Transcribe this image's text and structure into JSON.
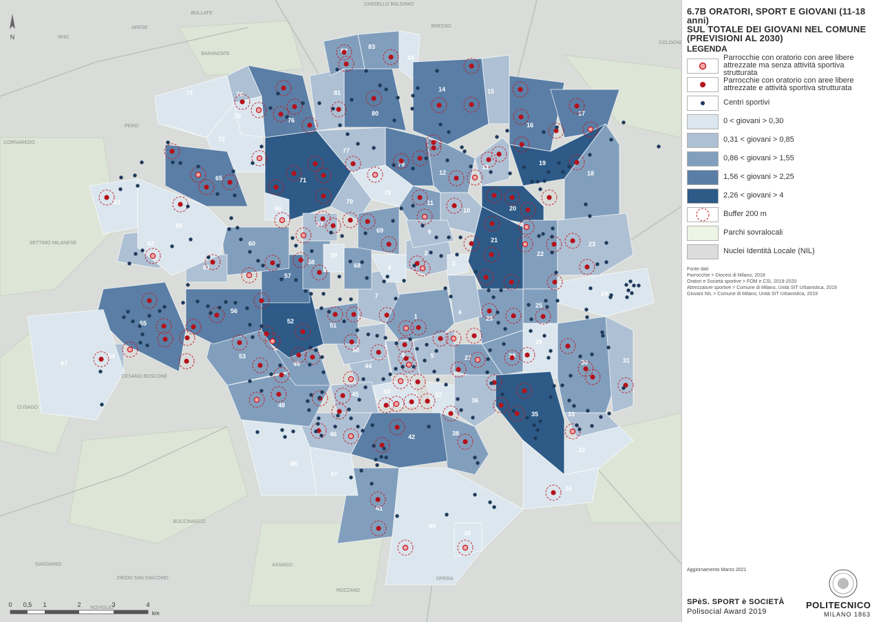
{
  "title": {
    "line1": "6.7B ORATORI, SPORT E GIOVANI (11-18 anni)",
    "line2": "SUL TOTALE DEI GIOVANI NEL COMUNE",
    "line3": "(PREVISIONI AL 2030)",
    "legend_heading": "LEGENDA"
  },
  "legend": [
    {
      "key": "parish-no-sport",
      "label": "Parrocchie con oratorio con aree libere attrezzate ma senza attività sportiva strutturata"
    },
    {
      "key": "parish-sport",
      "label": "Parrocchie con oratorio con aree libere attrezzate e attività sportiva strutturata"
    },
    {
      "key": "sport-center",
      "label": "Centri sportivi"
    },
    {
      "key": "class1",
      "label": "0 < giovani > 0,30",
      "color": "#dbe6ee"
    },
    {
      "key": "class2",
      "label": "0,31 < giovani > 0,85",
      "color": "#adc0d4"
    },
    {
      "key": "class3",
      "label": "0,86 < giovani > 1,55",
      "color": "#819fbd"
    },
    {
      "key": "class4",
      "label": "1,56 < giovani > 2,25",
      "color": "#5a7ea5"
    },
    {
      "key": "class5",
      "label": "2,26 < giovani > 4",
      "color": "#2d5a87"
    },
    {
      "key": "buffer",
      "label": "Buffer 200 m"
    },
    {
      "key": "parks",
      "label": "Parchi sovralocali",
      "color": "#edf6e6"
    },
    {
      "key": "nil",
      "label": "Nuclei Identità Locale (NIL)",
      "color": "#dcdcdc"
    }
  ],
  "sources": {
    "heading": "Fonte dati",
    "lines": [
      "Parrocchie  > Diocesi di Milano, 2018",
      "Oratori e Società sportive > FOM e CSI, 2019-2020",
      "Attrezzature sportive  > Comune di Milano, Unità SIT Urbanistica, 2019",
      "Giovani NIL  > Comune di Milano, Unità SIT Urbanistica, 2019"
    ]
  },
  "updated": "Aggiornamento Marzo 2021",
  "footer": {
    "spes1": "SPèS. SPORT è SOCIETÀ",
    "spes2": "Polisocial Award 2019",
    "poli": "POLITECNICO",
    "milano": "MILANO 1863"
  },
  "north_label": "N",
  "scale": {
    "ticks": [
      "0",
      "0,5",
      "1",
      "2",
      "3",
      "4"
    ],
    "unit": "km"
  },
  "places": [
    "BOLLATE",
    "CINISELLO BALSAMO",
    "ARESE",
    "BARANZATE",
    "BRESSO",
    "RHO",
    "PERO",
    "CORNAREDO",
    "COLOGNO",
    "SETTIMO MILANESE",
    "CESANO BOSCONE",
    "CUSAGO",
    "BUCCINASCO",
    "ASSAGO",
    "GAGGIANO",
    "ZIBIDO SAN GIACOMO",
    "ROZZANO",
    "OPERA",
    "NOVIGLIO"
  ],
  "nil_numbers": [
    "1",
    "2",
    "3",
    "4",
    "5",
    "6",
    "7",
    "8",
    "9",
    "10",
    "11",
    "12",
    "13",
    "14",
    "15",
    "16",
    "17",
    "18",
    "19",
    "20",
    "21",
    "22",
    "23",
    "24",
    "25",
    "26",
    "27",
    "28",
    "29",
    "30",
    "31",
    "32",
    "33",
    "34",
    "35",
    "36",
    "37",
    "38",
    "39",
    "41",
    "42",
    "43",
    "44",
    "45",
    "46",
    "47",
    "48",
    "49",
    "50",
    "51",
    "52",
    "53",
    "54",
    "55",
    "56",
    "57",
    "58",
    "59",
    "60",
    "61",
    "62",
    "63",
    "65",
    "66",
    "67",
    "68",
    "69",
    "70",
    "71",
    "72",
    "73",
    "74",
    "75",
    "76",
    "77",
    "78",
    "79",
    "80",
    "81",
    "82",
    "83",
    "84",
    "85",
    "86",
    "87",
    "88"
  ]
}
